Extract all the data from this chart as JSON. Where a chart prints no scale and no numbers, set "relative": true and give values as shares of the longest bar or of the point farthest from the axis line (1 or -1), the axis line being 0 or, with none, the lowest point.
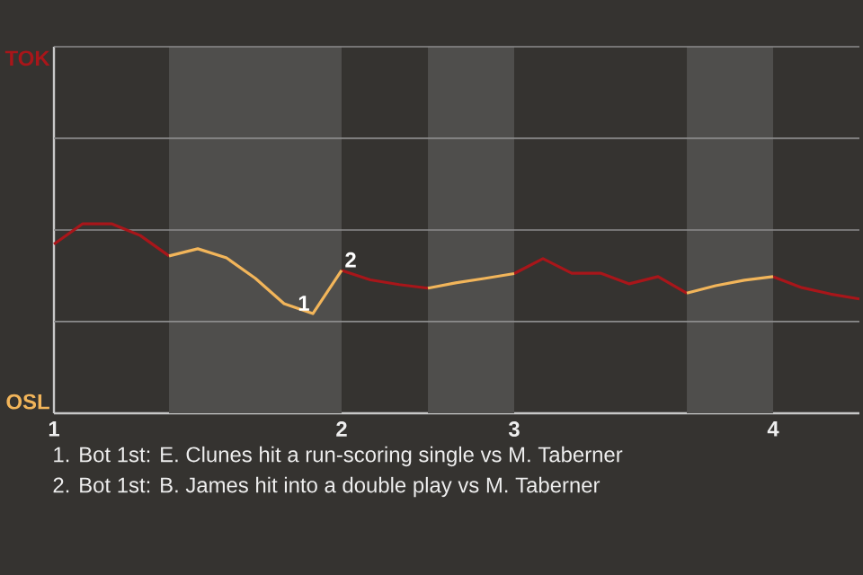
{
  "chart_data": {
    "type": "line",
    "relative": true,
    "categories": [
      "1",
      null,
      null,
      null,
      null,
      null,
      null,
      null,
      null,
      null,
      "2",
      null,
      null,
      null,
      null,
      null,
      "3",
      null,
      null,
      null,
      null,
      null,
      null,
      null,
      null,
      "4",
      null,
      null,
      null
    ],
    "series": [
      {
        "color": "#a8161a",
        "values": [
          0.892,
          1,
          1,
          0.938,
          0.83,
          null,
          null,
          null,
          null,
          null,
          0.754,
          0.704,
          0.679,
          0.66,
          null,
          null,
          0.737,
          0.816,
          0.739,
          0.739,
          0.683,
          0.721,
          0.634,
          null,
          null,
          0.721,
          0.663,
          0.629,
          0.603
        ]
      },
      {
        "color": "#f2b55a",
        "values": [
          null,
          null,
          null,
          null,
          0.83,
          0.868,
          0.82,
          0.712,
          0.578,
          0.526,
          0.754,
          null,
          null,
          0.66,
          0.689,
          0.712,
          0.737,
          null,
          null,
          null,
          null,
          null,
          0.634,
          0.673,
          0.702,
          0.721,
          null,
          null,
          null
        ]
      }
    ],
    "ref_lines": [
      {
        "axis": "y",
        "value": 0.484,
        "color": "#8c8c8c"
      },
      {
        "axis": "y",
        "value": 0.967,
        "color": "#8c8c8c"
      },
      {
        "axis": "y",
        "value": 1.451,
        "color": "#8c8c8c"
      },
      {
        "axis": "y",
        "value": 1.934,
        "color": "#8c8c8c"
      }
    ],
    "annotations": [
      "TOK",
      "OSL",
      {
        "text": "1",
        "y": 0.526
      },
      {
        "text": "2",
        "y": 0.754
      },
      "1. Bot 1st: E. Clunes hit a run-scoring single vs M. Taberner",
      "2. Bot 1st: B. James hit into a double play vs M. Taberner"
    ]
  }
}
